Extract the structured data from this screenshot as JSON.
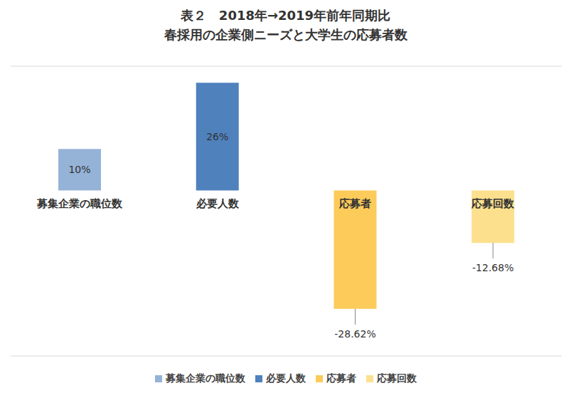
{
  "chart_data": {
    "type": "bar",
    "title": "表２　2018年→2019年前年同期比",
    "subtitle": "春採用の企業側ニーズと大学生の応募者数",
    "categories": [
      "募集企業の職位数",
      "必要人数",
      "応募者",
      "応募回数"
    ],
    "values": [
      10,
      26,
      -28.62,
      -12.68
    ],
    "value_labels": [
      "10%",
      "26%",
      "-28.62%",
      "-12.68%"
    ],
    "colors": [
      "#95b3d7",
      "#4f81bd",
      "#fccb5a",
      "#fde08e"
    ],
    "ylim": [
      -40,
      30
    ],
    "yticks": [
      -40,
      -30,
      -20,
      -10,
      0,
      10,
      20,
      30
    ],
    "grid": true,
    "data_labels": true,
    "tick_labels": "x",
    "legend": "bottom"
  }
}
